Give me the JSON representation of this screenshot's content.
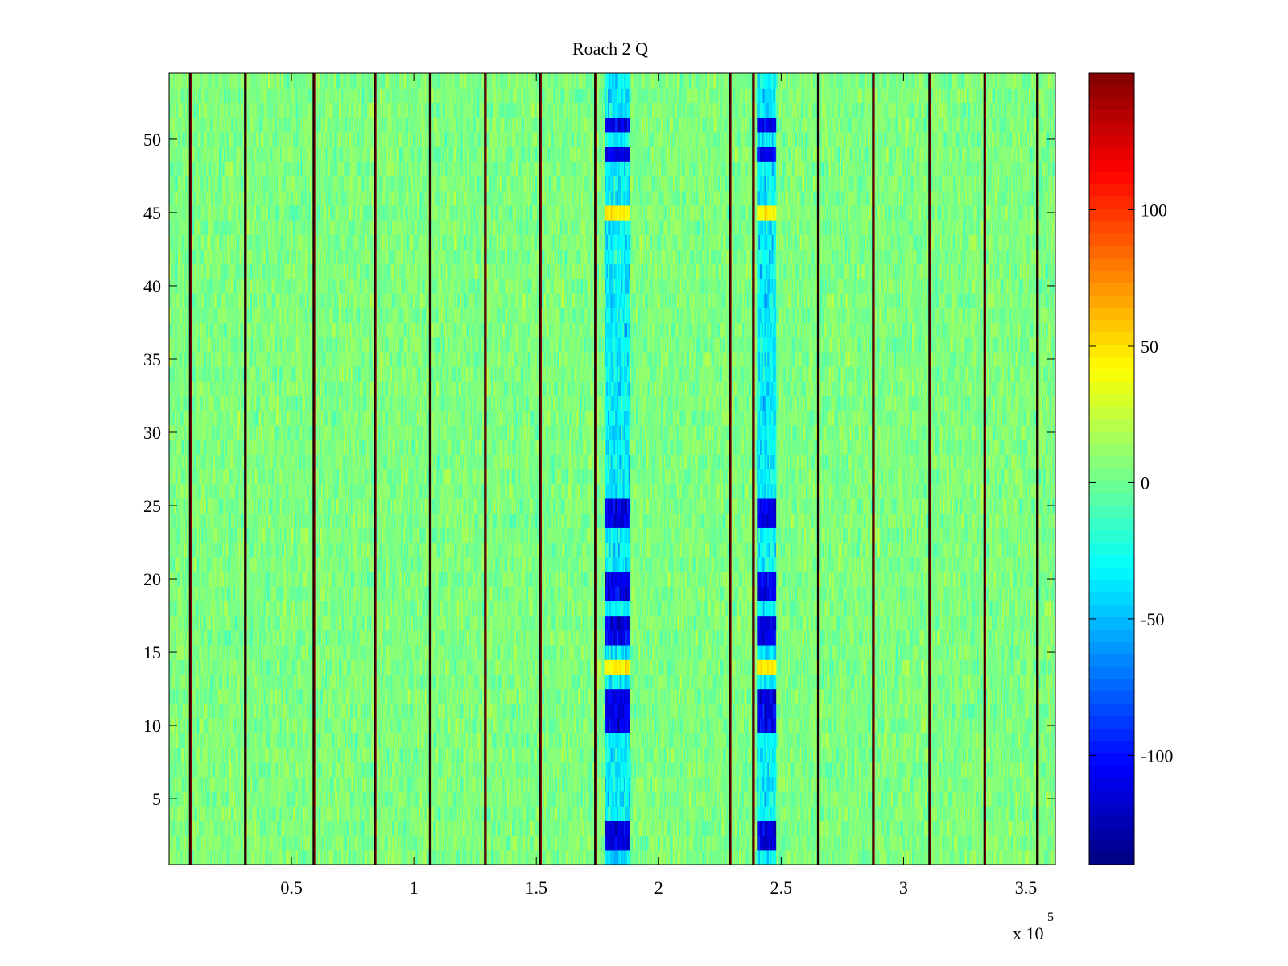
{
  "chart_data": {
    "type": "heatmap",
    "title": "Roach 2 Q",
    "xlabel": "",
    "ylabel": "",
    "x_exponent_label": "x 10",
    "x_exponent": "5",
    "xlim": [
      0,
      362000
    ],
    "ylim": [
      0.5,
      54.5
    ],
    "x_ticks": [
      50000,
      100000,
      150000,
      200000,
      250000,
      300000,
      350000
    ],
    "x_tick_labels": [
      "0.5",
      "1",
      "1.5",
      "2",
      "2.5",
      "3",
      "3.5"
    ],
    "y_ticks": [
      5,
      10,
      15,
      20,
      25,
      30,
      35,
      40,
      45,
      50
    ],
    "y_tick_labels": [
      "5",
      "10",
      "15",
      "20",
      "25",
      "30",
      "35",
      "40",
      "45",
      "50"
    ],
    "colormap": "jet",
    "clim": [
      -140,
      150
    ],
    "colorbar_ticks": [
      100,
      50,
      0,
      -50,
      -100
    ],
    "colorbar_tick_labels": [
      "100",
      "50",
      "0",
      "-50",
      "-100"
    ],
    "rows": 54,
    "background_mean": 5,
    "background_spread": 22,
    "dark_column_lines_x": [
      8500,
      31000,
      59000,
      84000,
      106500,
      129000,
      151500,
      174000,
      229000,
      238500,
      265000,
      287500,
      310500,
      333000,
      354500
    ],
    "interference_bands": [
      {
        "x_range": [
          178000,
          188000
        ],
        "low_rows": [
          2,
          3,
          10,
          11,
          12,
          16,
          17,
          19,
          20,
          24,
          25,
          49,
          51
        ],
        "high_rows": [
          14,
          45
        ]
      },
      {
        "x_range": [
          240000,
          248000
        ],
        "low_rows": [
          2,
          3,
          10,
          11,
          12,
          16,
          17,
          19,
          20,
          24,
          25,
          49,
          51
        ],
        "high_rows": [
          14,
          45
        ]
      }
    ],
    "grid": false,
    "colorbar": "right"
  }
}
